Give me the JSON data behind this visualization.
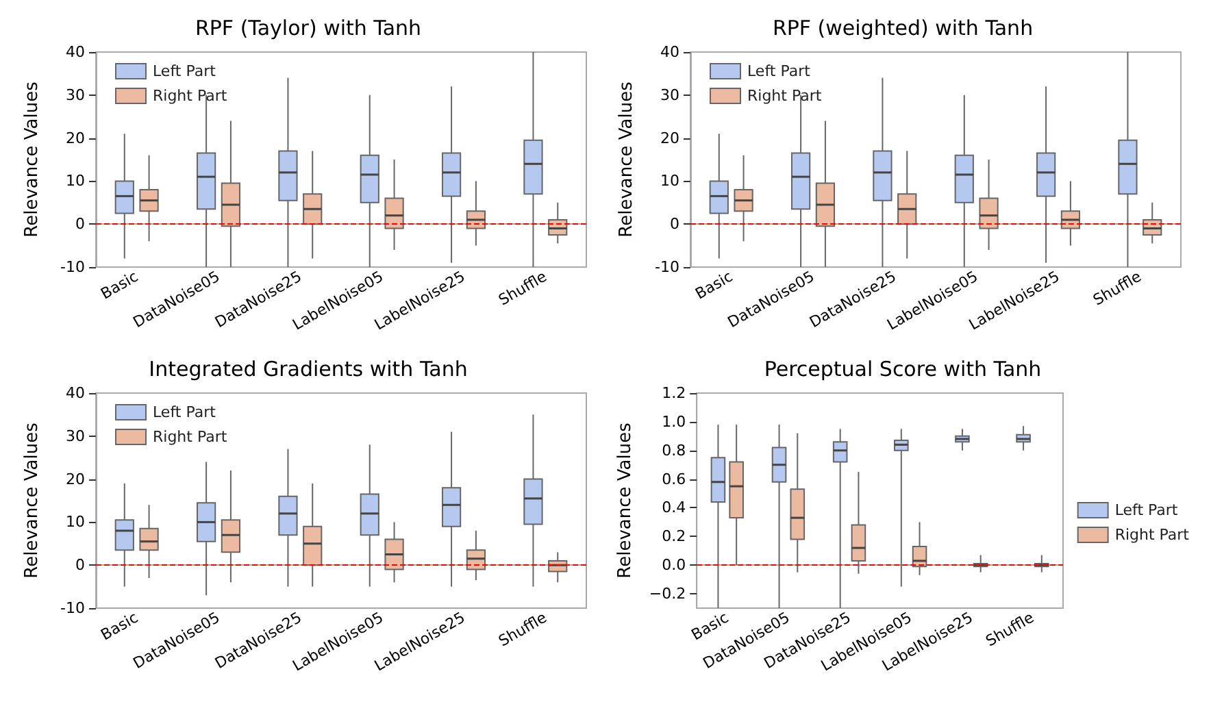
{
  "chart_data": [
    {
      "type": "box",
      "title": "RPF (Taylor) with Tanh",
      "ylabel": "Relevance Values",
      "categories": [
        "Basic",
        "DataNoise05",
        "DataNoise25",
        "LabelNoise05",
        "LabelNoise25",
        "Shuffle"
      ],
      "ylim": [
        -10,
        40
      ],
      "yticks": [
        -10,
        0,
        10,
        20,
        30,
        40
      ],
      "grid": false,
      "legend": "top left",
      "ref_lines": [
        {
          "axis": "y",
          "value": 0,
          "color": "#ff0000",
          "line_style": "dashed"
        }
      ],
      "series": [
        {
          "name": "Left Part",
          "color": "#b4c8f0",
          "boxes": [
            {
              "low": -8,
              "q1": 2.5,
              "median": 6.5,
              "q3": 10,
              "high": 21
            },
            {
              "low": -10,
              "q1": 3.5,
              "median": 11,
              "q3": 16.5,
              "high": 30
            },
            {
              "low": -10,
              "q1": 5.5,
              "median": 12,
              "q3": 17,
              "high": 34
            },
            {
              "low": -10,
              "q1": 5,
              "median": 11.5,
              "q3": 16,
              "high": 30
            },
            {
              "low": -9,
              "q1": 6.5,
              "median": 12,
              "q3": 16.5,
              "high": 32
            },
            {
              "low": -10,
              "q1": 7,
              "median": 14,
              "q3": 19.5,
              "high": 40
            }
          ]
        },
        {
          "name": "Right Part",
          "color": "#ecb9a1",
          "boxes": [
            {
              "low": -4,
              "q1": 3,
              "median": 5.5,
              "q3": 8,
              "high": 16
            },
            {
              "low": -10,
              "q1": -0.5,
              "median": 4.5,
              "q3": 9.5,
              "high": 24
            },
            {
              "low": -8,
              "q1": 0,
              "median": 3.5,
              "q3": 7,
              "high": 17
            },
            {
              "low": -6,
              "q1": -1,
              "median": 2,
              "q3": 6,
              "high": 15
            },
            {
              "low": -5,
              "q1": -1,
              "median": 1,
              "q3": 3,
              "high": 10
            },
            {
              "low": -4.5,
              "q1": -2.5,
              "median": -1,
              "q3": 1,
              "high": 5
            }
          ]
        }
      ]
    },
    {
      "type": "box",
      "title": "RPF (weighted) with Tanh",
      "ylabel": "Relevance Values",
      "categories": [
        "Basic",
        "DataNoise05",
        "DataNoise25",
        "LabelNoise05",
        "LabelNoise25",
        "Shuffle"
      ],
      "ylim": [
        -10,
        40
      ],
      "yticks": [
        -10,
        0,
        10,
        20,
        30,
        40
      ],
      "grid": false,
      "legend": "top left",
      "ref_lines": [
        {
          "axis": "y",
          "value": 0,
          "color": "#ff0000",
          "line_style": "dashed"
        }
      ],
      "series": [
        {
          "name": "Left Part",
          "color": "#b4c8f0",
          "boxes": [
            {
              "low": -8,
              "q1": 2.5,
              "median": 6.5,
              "q3": 10,
              "high": 21
            },
            {
              "low": -10,
              "q1": 3.5,
              "median": 11,
              "q3": 16.5,
              "high": 30
            },
            {
              "low": -10,
              "q1": 5.5,
              "median": 12,
              "q3": 17,
              "high": 34
            },
            {
              "low": -10,
              "q1": 5,
              "median": 11.5,
              "q3": 16,
              "high": 30
            },
            {
              "low": -9,
              "q1": 6.5,
              "median": 12,
              "q3": 16.5,
              "high": 32
            },
            {
              "low": -10,
              "q1": 7,
              "median": 14,
              "q3": 19.5,
              "high": 40
            }
          ]
        },
        {
          "name": "Right Part",
          "color": "#ecb9a1",
          "boxes": [
            {
              "low": -4,
              "q1": 3,
              "median": 5.5,
              "q3": 8,
              "high": 16
            },
            {
              "low": -10,
              "q1": -0.5,
              "median": 4.5,
              "q3": 9.5,
              "high": 24
            },
            {
              "low": -8,
              "q1": 0,
              "median": 3.5,
              "q3": 7,
              "high": 17
            },
            {
              "low": -6,
              "q1": -1,
              "median": 2,
              "q3": 6,
              "high": 15
            },
            {
              "low": -5,
              "q1": -1,
              "median": 1,
              "q3": 3,
              "high": 10
            },
            {
              "low": -4.5,
              "q1": -2.5,
              "median": -1,
              "q3": 1,
              "high": 5
            }
          ]
        }
      ]
    },
    {
      "type": "box",
      "title": "Integrated Gradients with Tanh",
      "ylabel": "Relevance Values",
      "categories": [
        "Basic",
        "DataNoise05",
        "DataNoise25",
        "LabelNoise05",
        "LabelNoise25",
        "Shuffle"
      ],
      "ylim": [
        -10,
        40
      ],
      "yticks": [
        -10,
        0,
        10,
        20,
        30,
        40
      ],
      "grid": false,
      "legend": "top left",
      "ref_lines": [
        {
          "axis": "y",
          "value": 0,
          "color": "#ff0000",
          "line_style": "dashed"
        }
      ],
      "series": [
        {
          "name": "Left Part",
          "color": "#b4c8f0",
          "boxes": [
            {
              "low": -5,
              "q1": 3.5,
              "median": 8,
              "q3": 10.5,
              "high": 19
            },
            {
              "low": -7,
              "q1": 5.5,
              "median": 10,
              "q3": 14.5,
              "high": 24
            },
            {
              "low": -5,
              "q1": 7,
              "median": 12,
              "q3": 16,
              "high": 27
            },
            {
              "low": -5,
              "q1": 7,
              "median": 12,
              "q3": 16.5,
              "high": 28
            },
            {
              "low": -5,
              "q1": 9,
              "median": 14,
              "q3": 18,
              "high": 31
            },
            {
              "low": -5,
              "q1": 9.5,
              "median": 15.5,
              "q3": 20,
              "high": 35
            }
          ]
        },
        {
          "name": "Right Part",
          "color": "#ecb9a1",
          "boxes": [
            {
              "low": -3,
              "q1": 3.5,
              "median": 5.5,
              "q3": 8.5,
              "high": 14
            },
            {
              "low": -4,
              "q1": 3,
              "median": 7,
              "q3": 10.5,
              "high": 22
            },
            {
              "low": -5,
              "q1": 0,
              "median": 5,
              "q3": 9,
              "high": 19
            },
            {
              "low": -4,
              "q1": -1,
              "median": 2.5,
              "q3": 6,
              "high": 10
            },
            {
              "low": -3.5,
              "q1": -1,
              "median": 1.5,
              "q3": 3.5,
              "high": 8
            },
            {
              "low": -4,
              "q1": -1.5,
              "median": 0,
              "q3": 1,
              "high": 3
            }
          ]
        }
      ]
    },
    {
      "type": "box",
      "title": "Perceptual Score with Tanh",
      "ylabel": "Relevance Values",
      "categories": [
        "Basic",
        "DataNoise05",
        "DataNoise25",
        "LabelNoise05",
        "LabelNoise25",
        "Shuffle"
      ],
      "ylim": [
        -0.3,
        1.2
      ],
      "yticks": [
        {
          "value": -0.2,
          "label": "−0.2"
        },
        {
          "value": 0,
          "label": "0.0"
        },
        0.2,
        0.4,
        0.6,
        0.8,
        {
          "value": 1,
          "label": "1.0"
        },
        1.2
      ],
      "grid": false,
      "legend": "right",
      "ref_lines": [
        {
          "axis": "y",
          "value": 0,
          "color": "#ff0000",
          "line_style": "dashed"
        }
      ],
      "series": [
        {
          "name": "Left Part",
          "color": "#b4c8f0",
          "boxes": [
            {
              "low": -0.3,
              "q1": 0.44,
              "median": 0.58,
              "q3": 0.75,
              "high": 0.98
            },
            {
              "low": -0.3,
              "q1": 0.58,
              "median": 0.7,
              "q3": 0.82,
              "high": 0.98
            },
            {
              "low": -0.3,
              "q1": 0.72,
              "median": 0.8,
              "q3": 0.86,
              "high": 0.95
            },
            {
              "low": -0.15,
              "q1": 0.8,
              "median": 0.84,
              "q3": 0.87,
              "high": 0.95
            },
            {
              "low": 0.8,
              "q1": 0.86,
              "median": 0.88,
              "q3": 0.9,
              "high": 0.95
            },
            {
              "low": 0.8,
              "q1": 0.86,
              "median": 0.88,
              "q3": 0.91,
              "high": 0.97
            }
          ]
        },
        {
          "name": "Right Part",
          "color": "#ecb9a1",
          "boxes": [
            {
              "low": 0,
              "q1": 0.33,
              "median": 0.55,
              "q3": 0.72,
              "high": 0.98
            },
            {
              "low": -0.05,
              "q1": 0.18,
              "median": 0.33,
              "q3": 0.53,
              "high": 0.92
            },
            {
              "low": -0.06,
              "q1": 0.03,
              "median": 0.12,
              "q3": 0.28,
              "high": 0.65
            },
            {
              "low": -0.07,
              "q1": -0.01,
              "median": 0.03,
              "q3": 0.13,
              "high": 0.3
            },
            {
              "low": -0.05,
              "q1": -0.01,
              "median": 0,
              "q3": 0.01,
              "high": 0.07
            },
            {
              "low": -0.05,
              "q1": -0.01,
              "median": 0,
              "q3": 0.01,
              "high": 0.07
            }
          ]
        }
      ]
    }
  ]
}
